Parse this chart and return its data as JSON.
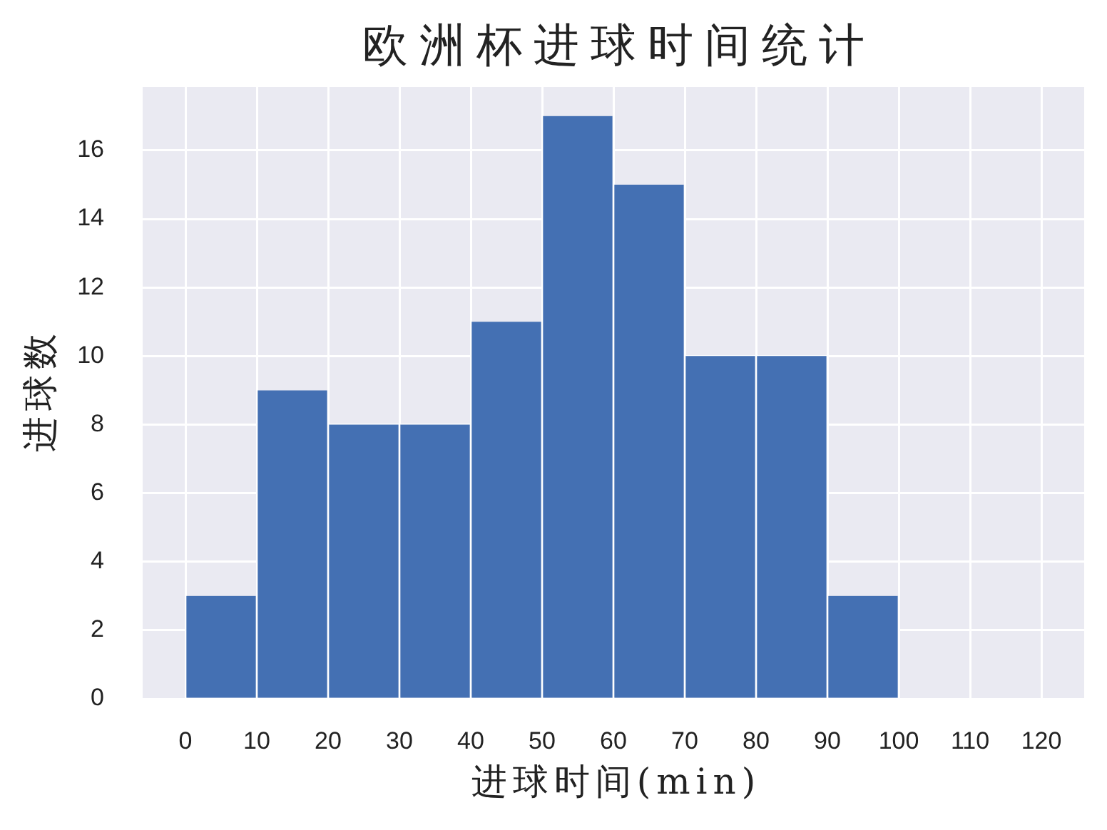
{
  "chart_data": {
    "type": "histogram",
    "title": "欧洲杯进球时间统计",
    "xlabel": "进球时间(min)",
    "ylabel": "进球数",
    "bins": [
      0,
      10,
      20,
      30,
      40,
      50,
      60,
      70,
      80,
      90,
      100
    ],
    "values": [
      3,
      9,
      8,
      8,
      11,
      17,
      15,
      10,
      10,
      3
    ],
    "color": "#4470b3",
    "xlim": [
      -6,
      126
    ],
    "ylim": [
      0,
      17.85
    ],
    "xticks": [
      0,
      10,
      20,
      30,
      40,
      50,
      60,
      70,
      80,
      90,
      100,
      110,
      120
    ],
    "yticks": [
      0,
      2,
      4,
      6,
      8,
      10,
      12,
      14,
      16
    ],
    "grid": true
  }
}
